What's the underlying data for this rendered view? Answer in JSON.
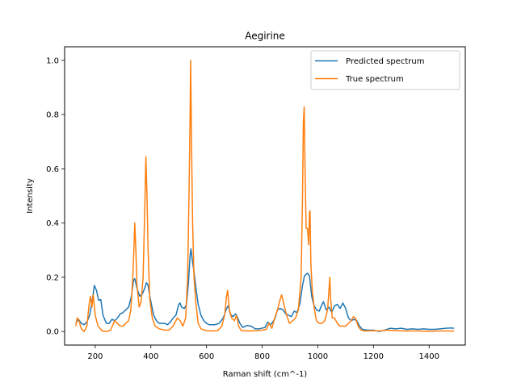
{
  "chart_data": {
    "type": "line",
    "title": "Aegirine",
    "xlabel": "Raman shift (cm^-1)",
    "ylabel": "Intensity",
    "xlim": [
      90,
      1530
    ],
    "ylim": [
      -0.05,
      1.05
    ],
    "xticks": [
      200,
      400,
      600,
      800,
      1000,
      1200,
      1400
    ],
    "yticks": [
      0.0,
      0.2,
      0.4,
      0.6,
      0.8,
      1.0
    ],
    "xtick_labels": [
      "200",
      "400",
      "600",
      "800",
      "1000",
      "1200",
      "1400"
    ],
    "ytick_labels": [
      "0.0",
      "0.2",
      "0.4",
      "0.6",
      "0.8",
      "1.0"
    ],
    "grid": false,
    "legend_position": "top-right",
    "series": [
      {
        "name": "Predicted spectrum",
        "color": "#1f77b4",
        "points": [
          [
            130,
            0.03
          ],
          [
            140,
            0.045
          ],
          [
            150,
            0.03
          ],
          [
            160,
            0.025
          ],
          [
            170,
            0.035
          ],
          [
            180,
            0.06
          ],
          [
            190,
            0.12
          ],
          [
            197,
            0.17
          ],
          [
            205,
            0.15
          ],
          [
            212,
            0.115
          ],
          [
            220,
            0.118
          ],
          [
            228,
            0.06
          ],
          [
            240,
            0.03
          ],
          [
            250,
            0.03
          ],
          [
            260,
            0.045
          ],
          [
            270,
            0.04
          ],
          [
            280,
            0.05
          ],
          [
            290,
            0.065
          ],
          [
            300,
            0.07
          ],
          [
            310,
            0.08
          ],
          [
            320,
            0.09
          ],
          [
            330,
            0.13
          ],
          [
            338,
            0.19
          ],
          [
            342,
            0.195
          ],
          [
            350,
            0.16
          ],
          [
            360,
            0.13
          ],
          [
            370,
            0.14
          ],
          [
            378,
            0.16
          ],
          [
            384,
            0.18
          ],
          [
            390,
            0.17
          ],
          [
            398,
            0.12
          ],
          [
            410,
            0.06
          ],
          [
            420,
            0.04
          ],
          [
            430,
            0.03
          ],
          [
            440,
            0.03
          ],
          [
            450,
            0.03
          ],
          [
            460,
            0.025
          ],
          [
            470,
            0.035
          ],
          [
            480,
            0.05
          ],
          [
            490,
            0.06
          ],
          [
            500,
            0.1
          ],
          [
            505,
            0.105
          ],
          [
            510,
            0.09
          ],
          [
            520,
            0.085
          ],
          [
            528,
            0.1
          ],
          [
            535,
            0.18
          ],
          [
            541,
            0.28
          ],
          [
            544,
            0.305
          ],
          [
            548,
            0.27
          ],
          [
            555,
            0.22
          ],
          [
            562,
            0.16
          ],
          [
            570,
            0.1
          ],
          [
            580,
            0.06
          ],
          [
            590,
            0.04
          ],
          [
            600,
            0.03
          ],
          [
            610,
            0.025
          ],
          [
            630,
            0.025
          ],
          [
            645,
            0.03
          ],
          [
            660,
            0.05
          ],
          [
            672,
            0.085
          ],
          [
            678,
            0.095
          ],
          [
            685,
            0.065
          ],
          [
            695,
            0.055
          ],
          [
            705,
            0.065
          ],
          [
            712,
            0.05
          ],
          [
            720,
            0.03
          ],
          [
            730,
            0.015
          ],
          [
            745,
            0.022
          ],
          [
            760,
            0.02
          ],
          [
            775,
            0.01
          ],
          [
            790,
            0.01
          ],
          [
            810,
            0.015
          ],
          [
            820,
            0.035
          ],
          [
            830,
            0.025
          ],
          [
            845,
            0.045
          ],
          [
            855,
            0.08
          ],
          [
            865,
            0.085
          ],
          [
            875,
            0.08
          ],
          [
            885,
            0.065
          ],
          [
            895,
            0.06
          ],
          [
            905,
            0.055
          ],
          [
            915,
            0.075
          ],
          [
            925,
            0.07
          ],
          [
            935,
            0.1
          ],
          [
            945,
            0.17
          ],
          [
            952,
            0.205
          ],
          [
            957,
            0.21
          ],
          [
            963,
            0.215
          ],
          [
            970,
            0.205
          ],
          [
            978,
            0.13
          ],
          [
            985,
            0.1
          ],
          [
            995,
            0.08
          ],
          [
            1005,
            0.075
          ],
          [
            1015,
            0.1
          ],
          [
            1020,
            0.11
          ],
          [
            1030,
            0.08
          ],
          [
            1040,
            0.09
          ],
          [
            1050,
            0.07
          ],
          [
            1060,
            0.095
          ],
          [
            1070,
            0.1
          ],
          [
            1080,
            0.085
          ],
          [
            1090,
            0.105
          ],
          [
            1100,
            0.085
          ],
          [
            1110,
            0.05
          ],
          [
            1120,
            0.04
          ],
          [
            1130,
            0.045
          ],
          [
            1140,
            0.04
          ],
          [
            1150,
            0.02
          ],
          [
            1160,
            0.008
          ],
          [
            1180,
            0.005
          ],
          [
            1200,
            0.005
          ],
          [
            1220,
            0.0
          ],
          [
            1240,
            0.005
          ],
          [
            1260,
            0.012
          ],
          [
            1280,
            0.01
          ],
          [
            1300,
            0.012
          ],
          [
            1320,
            0.008
          ],
          [
            1340,
            0.01
          ],
          [
            1360,
            0.008
          ],
          [
            1380,
            0.01
          ],
          [
            1400,
            0.008
          ],
          [
            1420,
            0.008
          ],
          [
            1440,
            0.01
          ],
          [
            1460,
            0.012
          ],
          [
            1480,
            0.013
          ],
          [
            1490,
            0.012
          ]
        ]
      },
      {
        "name": "True spectrum",
        "color": "#ff7f0e",
        "points": [
          [
            130,
            0.02
          ],
          [
            135,
            0.05
          ],
          [
            140,
            0.045
          ],
          [
            150,
            0.01
          ],
          [
            160,
            0.0
          ],
          [
            170,
            0.02
          ],
          [
            178,
            0.1
          ],
          [
            183,
            0.13
          ],
          [
            188,
            0.09
          ],
          [
            193,
            0.135
          ],
          [
            200,
            0.06
          ],
          [
            210,
            0.02
          ],
          [
            225,
            0.002
          ],
          [
            240,
            0.0
          ],
          [
            255,
            0.005
          ],
          [
            270,
            0.04
          ],
          [
            280,
            0.03
          ],
          [
            290,
            0.02
          ],
          [
            300,
            0.02
          ],
          [
            310,
            0.03
          ],
          [
            320,
            0.04
          ],
          [
            328,
            0.08
          ],
          [
            335,
            0.2
          ],
          [
            340,
            0.33
          ],
          [
            342,
            0.4
          ],
          [
            346,
            0.3
          ],
          [
            350,
            0.17
          ],
          [
            358,
            0.09
          ],
          [
            365,
            0.11
          ],
          [
            372,
            0.2
          ],
          [
            378,
            0.45
          ],
          [
            382,
            0.645
          ],
          [
            386,
            0.5
          ],
          [
            390,
            0.3
          ],
          [
            396,
            0.12
          ],
          [
            405,
            0.05
          ],
          [
            415,
            0.02
          ],
          [
            430,
            0.01
          ],
          [
            450,
            0.005
          ],
          [
            465,
            0.005
          ],
          [
            480,
            0.02
          ],
          [
            495,
            0.05
          ],
          [
            505,
            0.04
          ],
          [
            515,
            0.02
          ],
          [
            525,
            0.05
          ],
          [
            532,
            0.2
          ],
          [
            537,
            0.5
          ],
          [
            541,
            0.8
          ],
          [
            543,
            1.0
          ],
          [
            546,
            0.7
          ],
          [
            550,
            0.4
          ],
          [
            555,
            0.2
          ],
          [
            562,
            0.1
          ],
          [
            570,
            0.03
          ],
          [
            580,
            0.01
          ],
          [
            600,
            0.003
          ],
          [
            620,
            0.002
          ],
          [
            640,
            0.003
          ],
          [
            655,
            0.02
          ],
          [
            665,
            0.06
          ],
          [
            672,
            0.13
          ],
          [
            676,
            0.152
          ],
          [
            682,
            0.08
          ],
          [
            690,
            0.05
          ],
          [
            700,
            0.04
          ],
          [
            708,
            0.06
          ],
          [
            715,
            0.02
          ],
          [
            725,
            0.003
          ],
          [
            750,
            0.002
          ],
          [
            780,
            0.003
          ],
          [
            800,
            0.005
          ],
          [
            815,
            0.008
          ],
          [
            825,
            0.03
          ],
          [
            835,
            0.012
          ],
          [
            845,
            0.05
          ],
          [
            855,
            0.08
          ],
          [
            865,
            0.12
          ],
          [
            870,
            0.135
          ],
          [
            878,
            0.1
          ],
          [
            888,
            0.06
          ],
          [
            898,
            0.03
          ],
          [
            910,
            0.04
          ],
          [
            920,
            0.05
          ],
          [
            930,
            0.08
          ],
          [
            940,
            0.2
          ],
          [
            945,
            0.5
          ],
          [
            948,
            0.77
          ],
          [
            951,
            0.828
          ],
          [
            954,
            0.6
          ],
          [
            958,
            0.38
          ],
          [
            963,
            0.38
          ],
          [
            967,
            0.32
          ],
          [
            970,
            0.44
          ],
          [
            972,
            0.445
          ],
          [
            975,
            0.25
          ],
          [
            980,
            0.15
          ],
          [
            988,
            0.08
          ],
          [
            995,
            0.04
          ],
          [
            1005,
            0.03
          ],
          [
            1015,
            0.03
          ],
          [
            1025,
            0.04
          ],
          [
            1035,
            0.08
          ],
          [
            1040,
            0.15
          ],
          [
            1043,
            0.2
          ],
          [
            1046,
            0.12
          ],
          [
            1052,
            0.05
          ],
          [
            1060,
            0.05
          ],
          [
            1070,
            0.03
          ],
          [
            1080,
            0.02
          ],
          [
            1090,
            0.02
          ],
          [
            1100,
            0.02
          ],
          [
            1110,
            0.03
          ],
          [
            1120,
            0.04
          ],
          [
            1128,
            0.055
          ],
          [
            1135,
            0.05
          ],
          [
            1145,
            0.02
          ],
          [
            1155,
            0.005
          ],
          [
            1170,
            0.002
          ],
          [
            1200,
            0.003
          ],
          [
            1220,
            0.002
          ],
          [
            1250,
            0.005
          ],
          [
            1280,
            0.003
          ],
          [
            1310,
            0.002
          ],
          [
            1350,
            0.002
          ],
          [
            1400,
            0.001
          ],
          [
            1440,
            0.002
          ],
          [
            1490,
            0.002
          ]
        ]
      }
    ]
  }
}
